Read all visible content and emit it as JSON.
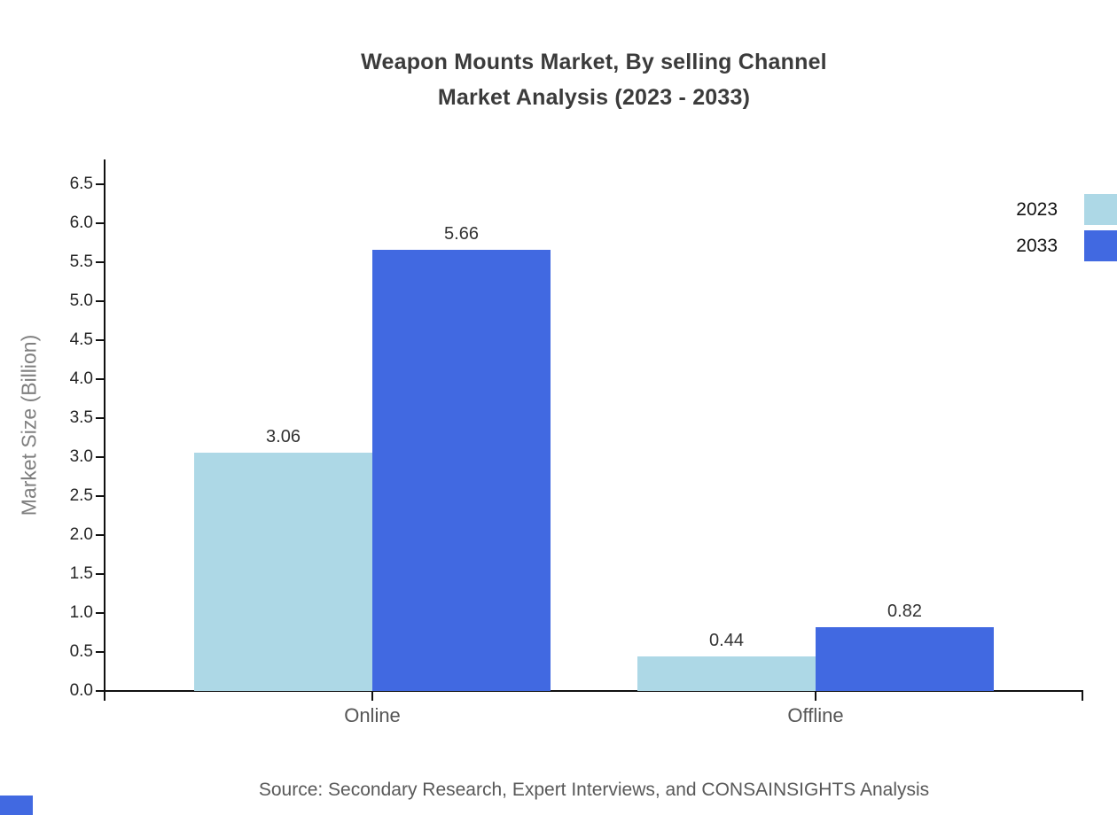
{
  "chart_data": {
    "type": "bar",
    "title": "Weapon Mounts Market, By selling Channel Market Analysis (2023 - 2033)",
    "title_line1": "Weapon Mounts Market, By selling Channel",
    "title_line2": "Market Analysis (2023 - 2033)",
    "categories": [
      "Online",
      "Offline"
    ],
    "series": [
      {
        "name": "2023",
        "color": "#ADD8E6",
        "values": [
          3.06,
          0.44
        ]
      },
      {
        "name": "2033",
        "color": "#4169E1",
        "values": [
          5.66,
          0.82
        ]
      }
    ],
    "xlabel": "",
    "ylabel": "Market Size (Billion)",
    "ylim": [
      0,
      6.5
    ],
    "ytick_step": 0.5,
    "grid": false,
    "legend_position": "top-right-edge",
    "value_labels_shown": true,
    "source": "Source: Secondary Research, Expert Interviews, and CONSAINSIGHTS Analysis"
  },
  "colors": {
    "axis": "#111111",
    "tick_label": "#262626",
    "category_label": "#555555",
    "title": "#3b3b3b",
    "ylabel": "#7f7f7f",
    "source": "#595959",
    "corner_square": "#4169E1"
  }
}
